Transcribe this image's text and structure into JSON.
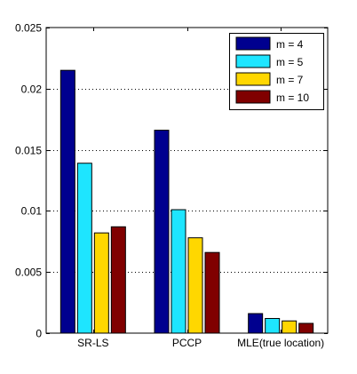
{
  "chart_data": {
    "type": "bar",
    "title": "",
    "xlabel": "",
    "ylabel": "",
    "categories": [
      "SR-LS",
      "PCCP",
      "MLE(true location)"
    ],
    "series": [
      {
        "name": "m = 4",
        "color": "#00008f",
        "values": [
          0.0215,
          0.0166,
          0.0016
        ]
      },
      {
        "name": "m = 5",
        "color": "#1ee5ff",
        "values": [
          0.0139,
          0.0101,
          0.0012
        ]
      },
      {
        "name": "m = 7",
        "color": "#ffd700",
        "values": [
          0.0082,
          0.0078,
          0.001
        ]
      },
      {
        "name": "m = 10",
        "color": "#800000",
        "values": [
          0.0087,
          0.0066,
          0.0008
        ]
      }
    ],
    "ylim": [
      0,
      0.025
    ],
    "yticks": [
      0,
      0.005,
      0.01,
      0.015,
      0.02,
      0.025
    ],
    "ytick_labels": [
      "0",
      "0.005",
      "0.01",
      "0.015",
      "0.02",
      "0.025"
    ],
    "grid": "horizontal-dotted",
    "legend_position": "top-right"
  }
}
